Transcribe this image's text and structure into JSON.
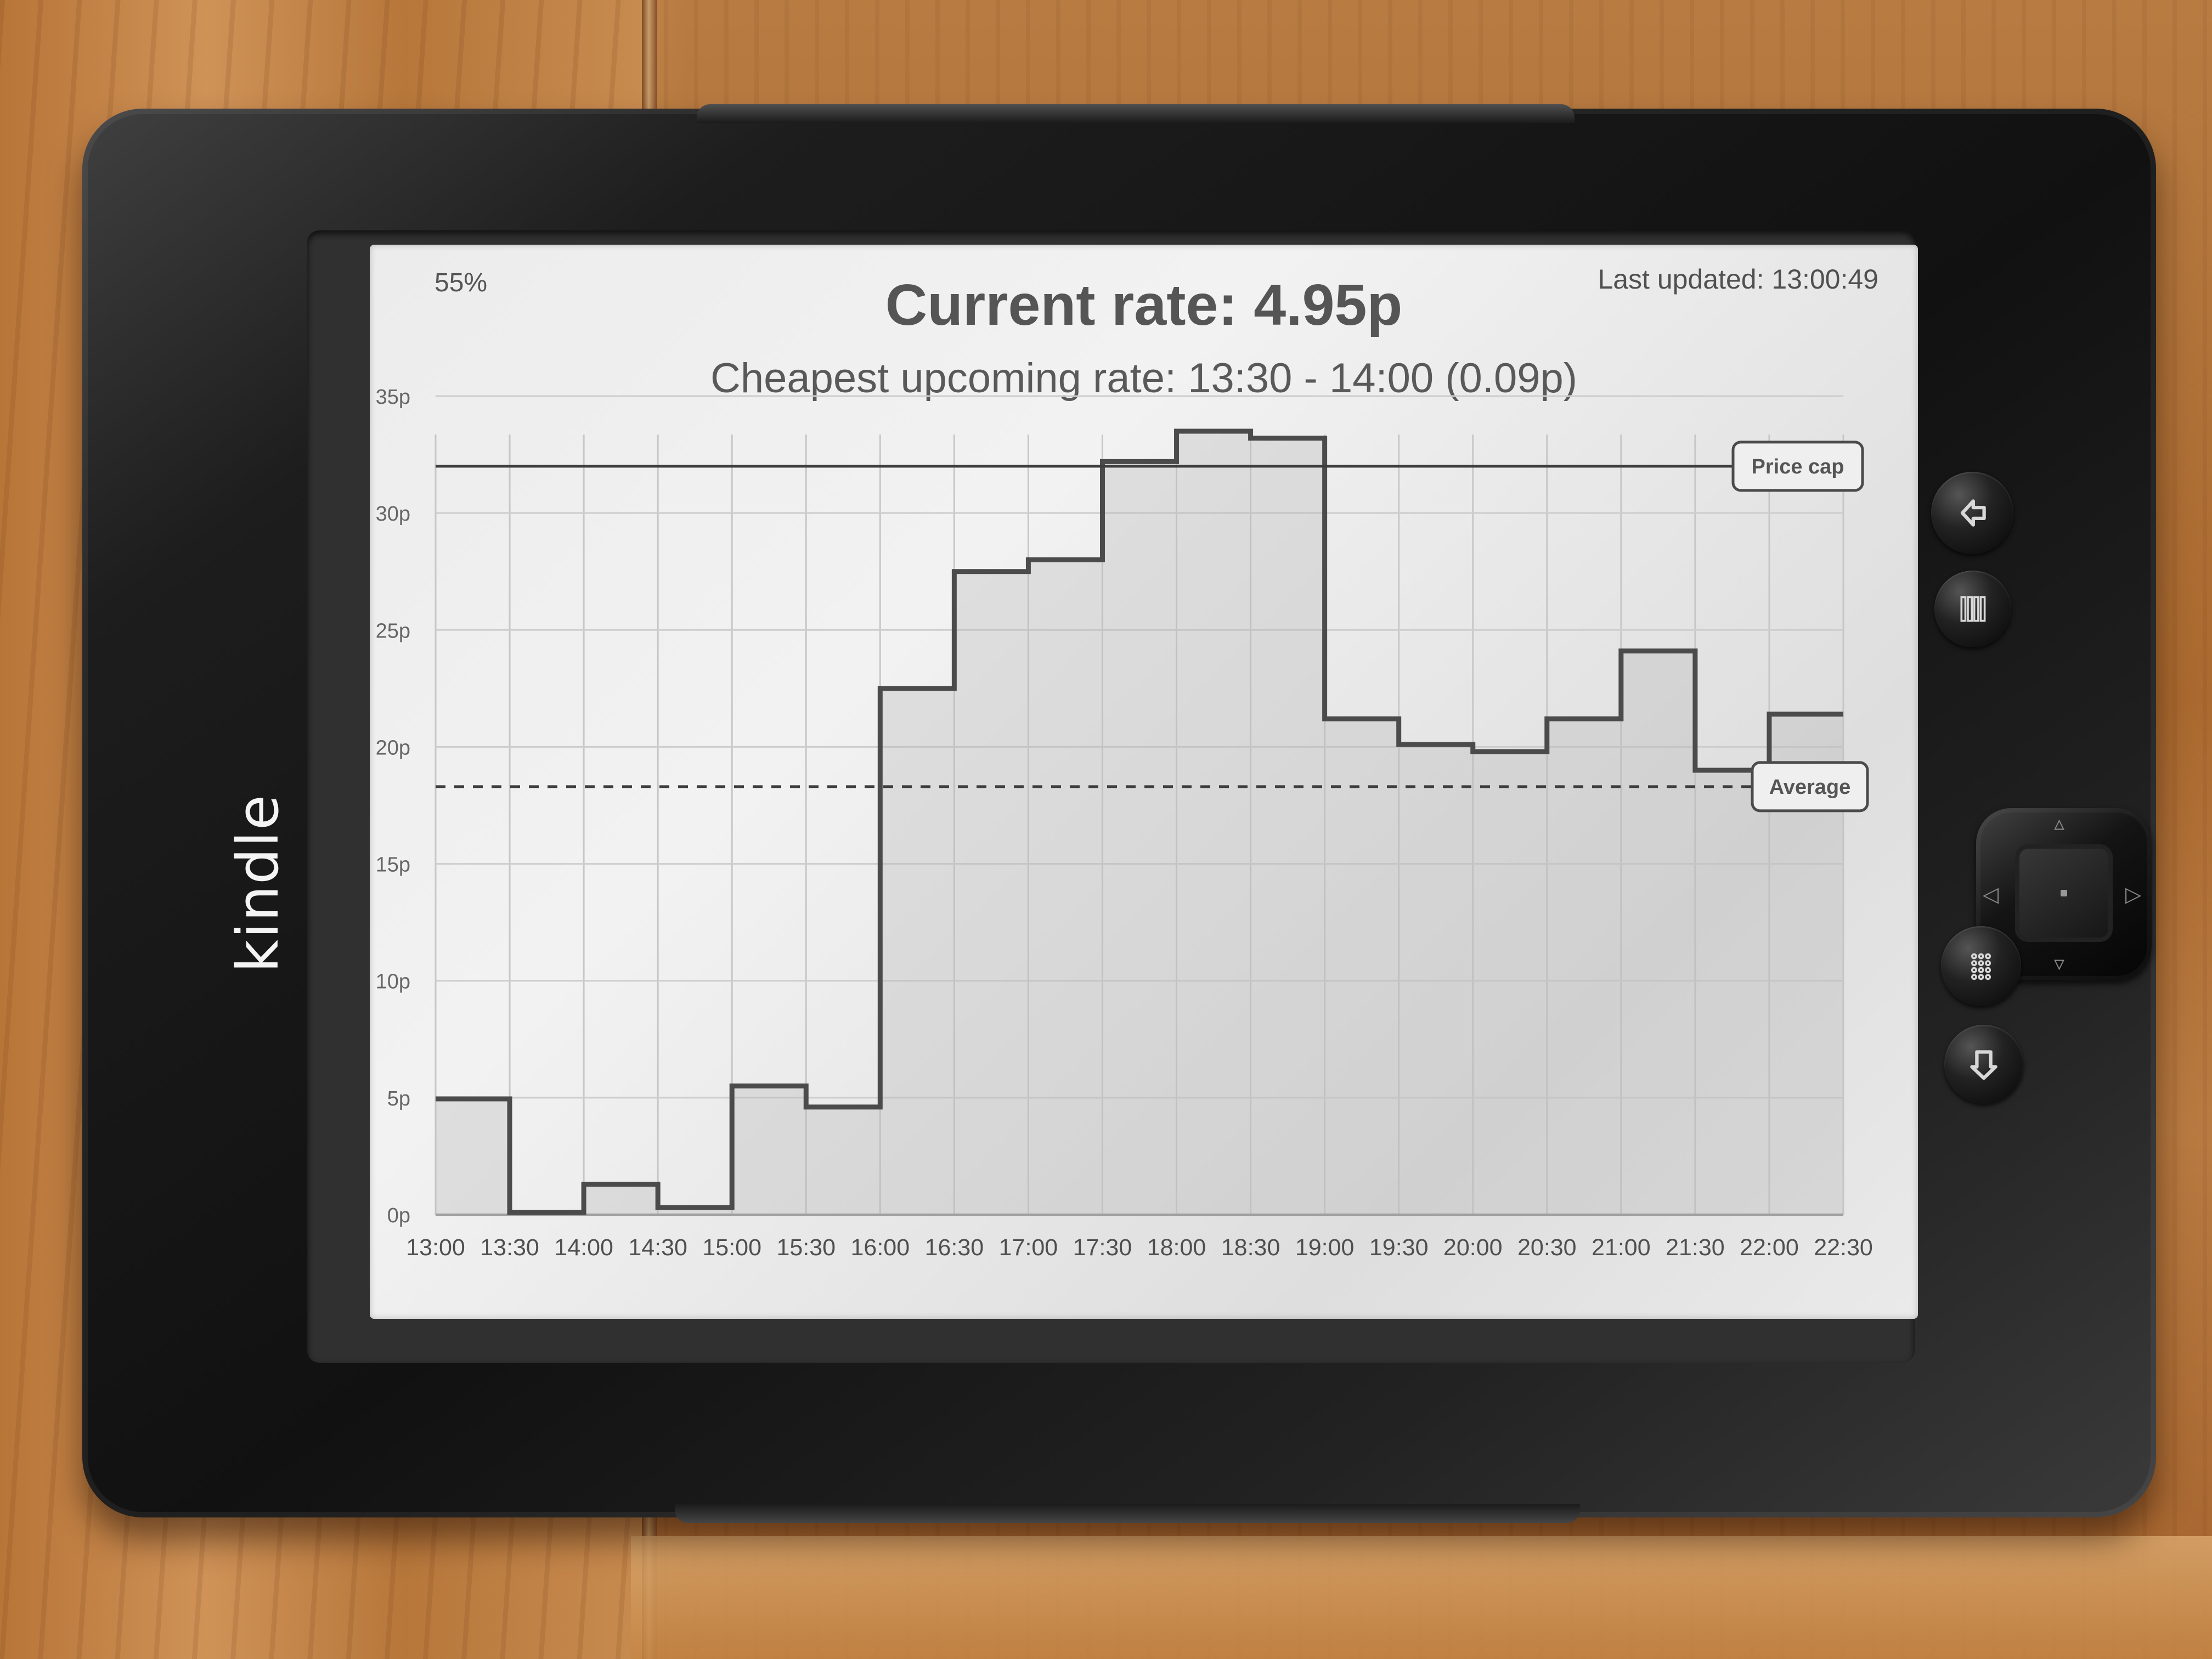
{
  "device": {
    "brand": "kindle"
  },
  "screen": {
    "battery": "55%",
    "last_updated": "Last updated: 13:00:49",
    "title": "Current rate: 4.95p",
    "subtitle": "Cheapest upcoming rate: 13:30 - 14:00 (0.09p)"
  },
  "chart_data": {
    "type": "line",
    "title": "",
    "xlabel": "",
    "ylabel": "",
    "x_tick_labels": [
      "13:00",
      "13:30",
      "14:00",
      "14:30",
      "15:00",
      "15:30",
      "16:00",
      "16:30",
      "17:00",
      "17:30",
      "18:00",
      "18:30",
      "19:00",
      "19:30",
      "20:00",
      "20:30",
      "21:00",
      "21:30",
      "22:00",
      "22:30"
    ],
    "y_tick_labels": [
      "0p",
      "5p",
      "10p",
      "15p",
      "20p",
      "25p",
      "30p",
      "35p"
    ],
    "ylim": [
      0,
      35
    ],
    "series": [
      {
        "style": "step",
        "x": [
          "13:00",
          "13:30",
          "14:00",
          "14:30",
          "15:00",
          "15:30",
          "16:00",
          "16:30",
          "17:00",
          "17:30",
          "18:00",
          "18:30",
          "19:00",
          "19:30",
          "20:00",
          "20:30",
          "21:00",
          "21:30",
          "22:00"
        ],
        "values": [
          4.95,
          0.09,
          1.3,
          0.3,
          5.5,
          4.6,
          22.5,
          27.5,
          28.0,
          32.2,
          33.5,
          33.2,
          21.2,
          20.1,
          19.8,
          21.2,
          24.1,
          19.0,
          21.4
        ]
      }
    ],
    "reference_lines": [
      {
        "label": "Price cap",
        "value": 32.0,
        "style": "solid"
      },
      {
        "label": "Average",
        "value": 18.3,
        "style": "dashed"
      }
    ],
    "grid": true
  },
  "buttons": {
    "back": "back-icon",
    "menu": "menu-icon",
    "keyboard": "keyboard-icon",
    "home": "home-icon"
  }
}
